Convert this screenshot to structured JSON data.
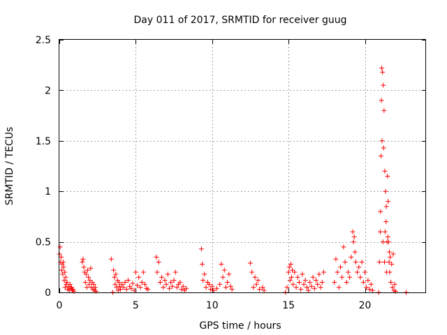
{
  "chart_data": {
    "type": "scatter",
    "title": "Day 011 of 2017, SRMTID for receiver guug",
    "xlabel": "GPS time / hours",
    "ylabel": "SRMTID / TECUs",
    "xlim": [
      0,
      24
    ],
    "ylim": [
      0,
      2.5
    ],
    "x_ticks": [
      0,
      5,
      10,
      15,
      20
    ],
    "x_tick_labels": [
      "0",
      "5",
      "10",
      "15",
      "20"
    ],
    "y_ticks": [
      0,
      0.5,
      1,
      1.5,
      2,
      2.5
    ],
    "y_tick_labels": [
      "0",
      "0.5",
      "1",
      "1.5",
      "2",
      "2.5"
    ],
    "grid": true,
    "marker": "+",
    "color": "#ff0000",
    "series": [
      {
        "name": "SRMTID",
        "x": [
          0.0,
          0.05,
          0.08,
          0.12,
          0.15,
          0.18,
          0.22,
          0.25,
          0.28,
          0.32,
          0.35,
          0.38,
          0.42,
          0.45,
          0.5,
          0.55,
          0.6,
          0.65,
          0.7,
          0.75,
          0.8,
          0.85,
          0.9,
          0.95,
          1.5,
          1.55,
          1.6,
          1.65,
          1.7,
          1.75,
          1.8,
          1.85,
          1.9,
          1.95,
          2.0,
          2.05,
          2.1,
          2.15,
          2.2,
          2.25,
          2.3,
          2.35,
          2.4,
          3.4,
          3.5,
          3.55,
          3.6,
          3.65,
          3.7,
          3.75,
          3.8,
          3.85,
          3.9,
          3.95,
          4.0,
          4.1,
          4.2,
          4.3,
          4.4,
          4.5,
          4.6,
          4.7,
          4.8,
          4.9,
          5.0,
          5.1,
          5.2,
          5.3,
          5.4,
          5.5,
          5.6,
          5.7,
          5.8,
          6.35,
          6.4,
          6.5,
          6.6,
          6.7,
          6.8,
          6.9,
          7.0,
          7.1,
          7.2,
          7.3,
          7.4,
          7.5,
          7.6,
          7.7,
          7.8,
          7.9,
          8.0,
          8.1,
          8.2,
          8.3,
          9.3,
          9.35,
          9.4,
          9.5,
          9.6,
          9.7,
          9.8,
          9.9,
          10.0,
          10.1,
          10.3,
          10.5,
          10.6,
          10.7,
          10.8,
          10.9,
          11.0,
          11.1,
          11.2,
          11.3,
          12.5,
          12.6,
          12.7,
          12.8,
          12.9,
          13.0,
          13.1,
          13.3,
          13.4,
          14.8,
          14.9,
          15.0,
          15.05,
          15.1,
          15.15,
          15.2,
          15.25,
          15.3,
          15.4,
          15.5,
          15.6,
          15.7,
          15.8,
          15.9,
          16.0,
          16.1,
          16.2,
          16.3,
          16.4,
          16.5,
          16.6,
          16.7,
          16.8,
          16.9,
          17.0,
          17.1,
          17.2,
          17.3,
          18.0,
          18.1,
          18.2,
          18.3,
          18.4,
          18.5,
          18.6,
          18.7,
          18.8,
          18.9,
          19.0,
          19.1,
          19.2,
          19.25,
          19.3,
          19.35,
          19.4,
          19.5,
          19.6,
          19.7,
          19.8,
          19.9,
          20.0,
          20.1,
          20.2,
          20.3,
          20.4,
          20.5,
          20.9,
          20.95,
          21.0,
          21.02,
          21.05,
          21.08,
          21.1,
          21.12,
          21.15,
          21.18,
          21.2,
          21.22,
          21.25,
          21.28,
          21.3,
          21.32,
          21.35,
          21.38,
          21.4,
          21.42,
          21.45,
          21.48,
          21.5,
          21.52,
          21.55,
          21.58,
          21.6,
          21.62,
          21.65,
          21.7,
          21.75,
          21.8,
          21.85,
          21.9,
          21.95,
          22.0,
          22.7
        ],
        "y": [
          0.38,
          0.45,
          0.3,
          0.35,
          0.22,
          0.28,
          0.18,
          0.3,
          0.25,
          0.12,
          0.2,
          0.05,
          0.15,
          0.08,
          0.1,
          0.03,
          0.06,
          0.02,
          0.08,
          0.04,
          0.05,
          0.02,
          0.03,
          0.01,
          0.3,
          0.33,
          0.25,
          0.2,
          0.1,
          0.18,
          0.05,
          0.22,
          0.15,
          0.08,
          0.12,
          0.24,
          0.05,
          0.1,
          0.03,
          0.08,
          0.02,
          0.05,
          0.01,
          0.33,
          0.0,
          0.22,
          0.15,
          0.08,
          0.18,
          0.05,
          0.12,
          0.02,
          0.1,
          0.06,
          0.03,
          0.08,
          0.05,
          0.1,
          0.03,
          0.12,
          0.06,
          0.04,
          0.09,
          0.02,
          0.2,
          0.07,
          0.15,
          0.05,
          0.1,
          0.2,
          0.08,
          0.04,
          0.03,
          0.35,
          0.2,
          0.3,
          0.1,
          0.15,
          0.05,
          0.12,
          0.08,
          0.18,
          0.04,
          0.1,
          0.06,
          0.12,
          0.2,
          0.05,
          0.08,
          0.1,
          0.03,
          0.06,
          0.02,
          0.04,
          0.43,
          0.28,
          0.12,
          0.18,
          0.05,
          0.1,
          0.08,
          0.03,
          0.06,
          0.02,
          0.04,
          0.08,
          0.28,
          0.15,
          0.22,
          0.05,
          0.1,
          0.18,
          0.06,
          0.03,
          0.29,
          0.2,
          0.05,
          0.15,
          0.08,
          0.12,
          0.03,
          0.05,
          0.02,
          0.0,
          0.05,
          0.2,
          0.25,
          0.12,
          0.28,
          0.15,
          0.22,
          0.08,
          0.2,
          0.05,
          0.15,
          0.1,
          0.03,
          0.18,
          0.08,
          0.12,
          0.05,
          0.02,
          0.1,
          0.06,
          0.15,
          0.04,
          0.12,
          0.08,
          0.18,
          0.05,
          0.1,
          0.2,
          0.1,
          0.33,
          0.2,
          0.05,
          0.25,
          0.15,
          0.45,
          0.3,
          0.1,
          0.2,
          0.15,
          0.35,
          0.6,
          0.5,
          0.55,
          0.4,
          0.3,
          0.2,
          0.25,
          0.15,
          0.3,
          0.1,
          0.2,
          0.05,
          0.12,
          0.03,
          0.08,
          0.02,
          0.0,
          0.3,
          0.6,
          0.8,
          1.35,
          1.9,
          2.22,
          1.5,
          2.18,
          0.5,
          2.05,
          1.43,
          1.8,
          0.3,
          1.2,
          0.6,
          1.0,
          0.7,
          0.85,
          0.2,
          0.5,
          1.15,
          0.55,
          0.9,
          0.5,
          0.3,
          0.4,
          0.2,
          0.35,
          0.1,
          0.28,
          0.05,
          0.38,
          0.02,
          0.08,
          0.01,
          0.0
        ]
      }
    ]
  }
}
